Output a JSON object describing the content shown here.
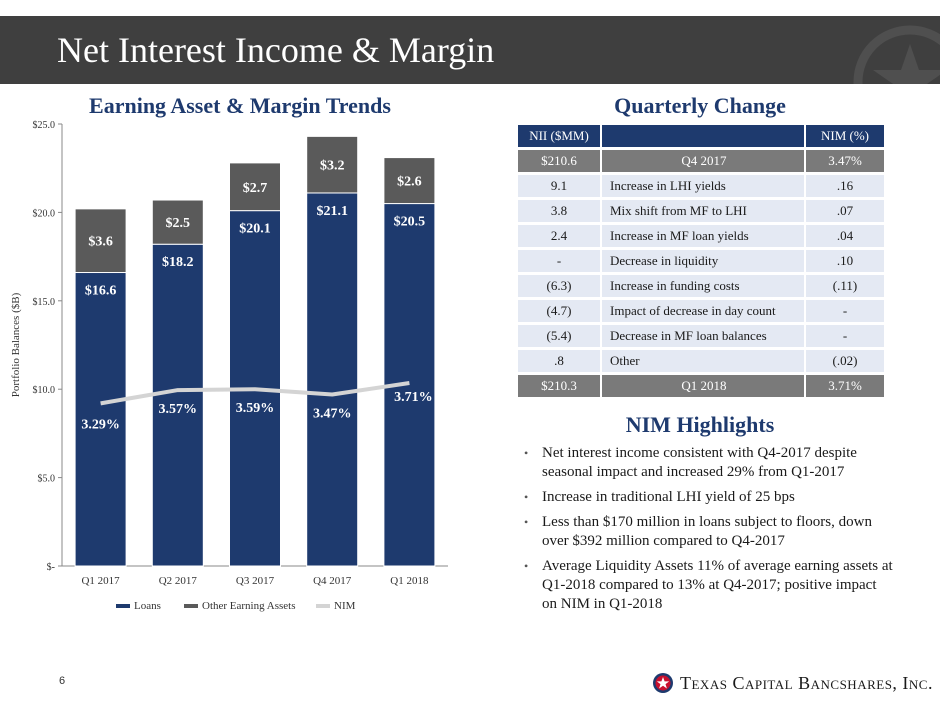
{
  "header": {
    "title": "Net Interest Income & Margin"
  },
  "colors": {
    "loans": "#1e3a6e",
    "other": "#5a5a5a",
    "nim": "#d4d4d4",
    "axis": "#888888"
  },
  "chart_data": {
    "type": "bar",
    "title": "Earning Asset & Margin Trends",
    "stacked": true,
    "categories": [
      "Q1 2017",
      "Q2 2017",
      "Q3 2017",
      "Q4 2017",
      "Q1 2018"
    ],
    "series": [
      {
        "name": "Loans",
        "values": [
          16.6,
          18.2,
          20.1,
          21.1,
          20.5
        ],
        "labels": [
          "$16.6",
          "$18.2",
          "$20.1",
          "$21.1",
          "$20.5"
        ]
      },
      {
        "name": "Other Earning Assets",
        "values": [
          3.6,
          2.5,
          2.7,
          3.2,
          2.6
        ],
        "labels": [
          "$3.6",
          "$2.5",
          "$2.7",
          "$3.2",
          "$2.6"
        ]
      }
    ],
    "line_series": {
      "name": "NIM",
      "values": [
        3.29,
        3.57,
        3.59,
        3.47,
        3.71
      ],
      "labels": [
        "3.29%",
        "3.57%",
        "3.59%",
        "3.47%",
        "3.71%"
      ],
      "plotted_at": [
        9.2,
        9.95,
        10.0,
        9.7,
        10.35
      ]
    },
    "ylabel": "Portfolio Balances ($B)",
    "ylim": [
      0,
      25
    ],
    "yticks": [
      0,
      5,
      10,
      15,
      20,
      25
    ],
    "ytick_labels": [
      "$-",
      "$5.0",
      "$10.0",
      "$15.0",
      "$20.0",
      "$25.0"
    ],
    "legend": [
      "Loans",
      "Other Earning Assets",
      "NIM"
    ],
    "legend_position": "bottom"
  },
  "quarterly_change": {
    "title": "Quarterly Change",
    "headers": [
      "NII ($MM)",
      "",
      "NIM (%)"
    ],
    "start": [
      "$210.6",
      "Q4 2017",
      "3.47%"
    ],
    "rows": [
      [
        "9.1",
        "Increase in LHI yields",
        ".16"
      ],
      [
        "3.8",
        "Mix shift from MF to LHI",
        ".07"
      ],
      [
        "2.4",
        "Increase in MF loan yields",
        ".04"
      ],
      [
        "-",
        "Decrease in liquidity",
        ".10"
      ],
      [
        "(6.3)",
        "Increase in funding costs",
        "(.11)"
      ],
      [
        "(4.7)",
        "Impact of decrease in day count",
        "-"
      ],
      [
        "(5.4)",
        "Decrease in MF loan balances",
        "-"
      ],
      [
        ".8",
        "Other",
        "(.02)"
      ]
    ],
    "end": [
      "$210.3",
      "Q1 2018",
      "3.71%"
    ]
  },
  "nim_highlights": {
    "title": "NIM Highlights",
    "bullets": [
      "Net interest income consistent with Q4-2017 despite seasonal impact and increased 29% from Q1-2017",
      "Increase in traditional LHI yield of 25 bps",
      "Less than $170 million in loans subject to floors, down over $392 million compared to Q4-2017",
      "Average Liquidity Assets 11% of average earning assets at Q1-2018 compared to 13% at Q4-2017; positive impact on NIM in Q1-2018"
    ],
    "bullet_symbol": "•"
  },
  "footer": {
    "page_number": "6",
    "logo_text": "Texas Capital Bancshares, Inc.",
    "logo_mark": "★"
  }
}
